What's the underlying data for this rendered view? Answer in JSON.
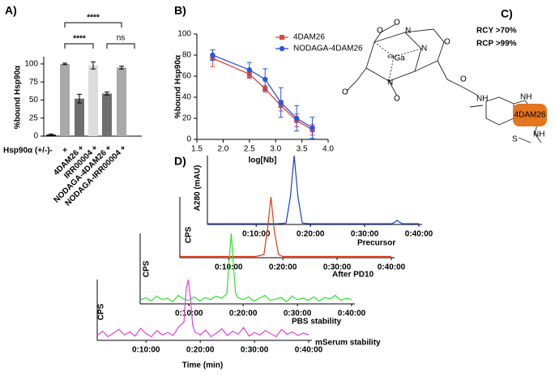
{
  "panel_labels": [
    "A)",
    "B)",
    "C)",
    "D)"
  ],
  "structure": {
    "labels": [
      "RCY >70%",
      "RCP >99%",
      "4DAM26",
      "N",
      "N",
      "N",
      "O",
      "O",
      "O",
      "O",
      "O",
      "O",
      "⁶⁸Ga",
      "NH",
      "NH",
      "NH",
      "S"
    ]
  },
  "chart_data": [
    {
      "type": "bar",
      "y_label": "%bound Hsp90α",
      "row_label": "Hsp90α (+/-)",
      "categories": [
        "-",
        "+",
        "4DAM26 +",
        "IRR00004 +",
        "NODAGA-4DAM26 +",
        "NODAGA-IRR00004 +"
      ],
      "values": [
        2,
        100,
        52,
        98,
        59,
        95
      ],
      "errors": [
        1,
        1,
        6,
        5,
        2,
        2
      ],
      "colors": [
        "#000000",
        "#a9a9a9",
        "#6e6e6e",
        "#dcdcdc",
        "#6e6e6e",
        "#a9a9a9"
      ],
      "ylim": [
        0,
        110
      ],
      "yticks": [
        0,
        25,
        50,
        75,
        100
      ],
      "annotations": [
        "****",
        "****",
        "ns"
      ]
    },
    {
      "type": "line",
      "x_label": "log[Nb]",
      "y_label": "%bound Hsp90α",
      "x": [
        1.8,
        2.5,
        2.8,
        3.1,
        3.4,
        3.7
      ],
      "series": [
        {
          "name": "4DAM26",
          "color": "#e5443a",
          "marker": "square",
          "values": [
            77,
            62,
            48,
            32,
            18,
            9
          ],
          "errors": [
            8,
            4,
            3,
            5,
            6,
            5
          ]
        },
        {
          "name": "NODAGA-4DAM26",
          "color": "#2a55e0",
          "marker": "circle",
          "values": [
            80,
            66,
            57,
            35,
            20,
            11
          ],
          "errors": [
            5,
            7,
            10,
            14,
            12,
            10
          ]
        }
      ],
      "xlim": [
        1.5,
        4.0
      ],
      "xticks": [
        1.5,
        {
          "value": 2,
          "label": "2.0"
        },
        2.5,
        {
          "value": 3,
          "label": "3.0"
        },
        3.5,
        {
          "value": 4,
          "label": "4.0"
        }
      ],
      "ylim": [
        0,
        100
      ],
      "yticks": [
        0,
        20,
        40,
        60,
        80,
        100
      ],
      "legend": "upper right"
    },
    {
      "type": "trace",
      "label": "Precursor",
      "y_label": "A280 (mAU)",
      "color": "#1a3fd0",
      "x": [
        1,
        5,
        10,
        14,
        15.5,
        16.3,
        17,
        17.7,
        18.5,
        20,
        25,
        30,
        35,
        35.5,
        36,
        36.5,
        37,
        40
      ],
      "values": [
        1,
        1,
        1,
        1,
        2,
        40,
        100,
        40,
        2,
        1,
        1,
        1,
        1,
        3,
        6,
        3,
        1,
        1
      ],
      "xlim": [
        1,
        40
      ],
      "ylim": [
        0,
        100
      ],
      "xticks": [
        {
          "value": 10,
          "label": "0:10:00"
        },
        {
          "value": 20,
          "label": "0:20:00"
        },
        {
          "value": 30,
          "label": "0:30:00"
        },
        {
          "value": 40,
          "label": "0:40:00"
        }
      ]
    },
    {
      "type": "trace",
      "label": "After PD10",
      "y_label": "CPS",
      "color": "#e23a10",
      "x": [
        1,
        5,
        10,
        15,
        16.5,
        17.2,
        17.8,
        18.4,
        19.2,
        20,
        25,
        30,
        35,
        40
      ],
      "values": [
        2,
        2,
        2,
        2,
        5,
        50,
        100,
        45,
        5,
        2,
        2,
        2,
        2,
        2
      ],
      "xlim": [
        1,
        40
      ],
      "ylim": [
        0,
        100
      ],
      "xticks": [
        {
          "value": 10,
          "label": "0:10:00"
        },
        {
          "value": 20,
          "label": "0:20:00"
        },
        {
          "value": 30,
          "label": "0:30:00"
        },
        {
          "value": 40,
          "label": "0:40:00"
        }
      ]
    },
    {
      "type": "trace",
      "label": "PBS stability",
      "y_label": "CPS",
      "color": "#2ee02e",
      "x": [
        1,
        2,
        3,
        4,
        5,
        6,
        7,
        8,
        9,
        10,
        11,
        12,
        13,
        14,
        15,
        16,
        17,
        17.4,
        17.8,
        18.2,
        18.6,
        19,
        20,
        21,
        22,
        23,
        24,
        25,
        26,
        27,
        28,
        29,
        30,
        31,
        32,
        33,
        34,
        35,
        36,
        37,
        38,
        39,
        40
      ],
      "values": [
        5,
        9,
        4,
        11,
        6,
        8,
        3,
        12,
        7,
        5,
        10,
        4,
        9,
        6,
        11,
        8,
        14,
        60,
        100,
        55,
        15,
        9,
        6,
        10,
        4,
        8,
        12,
        5,
        7,
        9,
        3,
        11,
        6,
        8,
        5,
        10,
        4,
        9,
        7,
        12,
        5,
        8,
        6
      ],
      "xlim": [
        1,
        40
      ],
      "ylim": [
        0,
        100
      ],
      "xticks": [
        {
          "value": 10,
          "label": "0:10:00"
        },
        {
          "value": 20,
          "label": "0:20:00"
        },
        {
          "value": 30,
          "label": "0:30:00"
        },
        {
          "value": 40,
          "label": "0:40:00"
        }
      ]
    },
    {
      "type": "trace",
      "label": "mSerum stability",
      "y_label": "CPS",
      "x_label": "Time (min)",
      "color": "#e040e0",
      "x": [
        1,
        2,
        3,
        4,
        5,
        6,
        7,
        8,
        9,
        10,
        11,
        12,
        13,
        14,
        15,
        16,
        17,
        17.4,
        17.8,
        18.2,
        18.6,
        19,
        20,
        21,
        22,
        23,
        24,
        25,
        26,
        27,
        28,
        29,
        30,
        31,
        32,
        33,
        34,
        35,
        36,
        37,
        38,
        39,
        40
      ],
      "values": [
        8,
        15,
        6,
        12,
        18,
        9,
        14,
        7,
        20,
        11,
        6,
        16,
        9,
        13,
        8,
        22,
        30,
        85,
        100,
        70,
        25,
        14,
        9,
        17,
        6,
        12,
        19,
        8,
        15,
        10,
        21,
        7,
        13,
        9,
        16,
        11,
        6,
        18,
        10,
        14,
        8,
        12,
        9
      ],
      "xlim": [
        1,
        40
      ],
      "ylim": [
        0,
        100
      ],
      "xticks": [
        {
          "value": 10,
          "label": "0:10:00"
        },
        {
          "value": 20,
          "label": "0:20:00"
        },
        {
          "value": 30,
          "label": "0:30:00"
        },
        {
          "value": 40,
          "label": "0:40:00"
        }
      ]
    }
  ]
}
